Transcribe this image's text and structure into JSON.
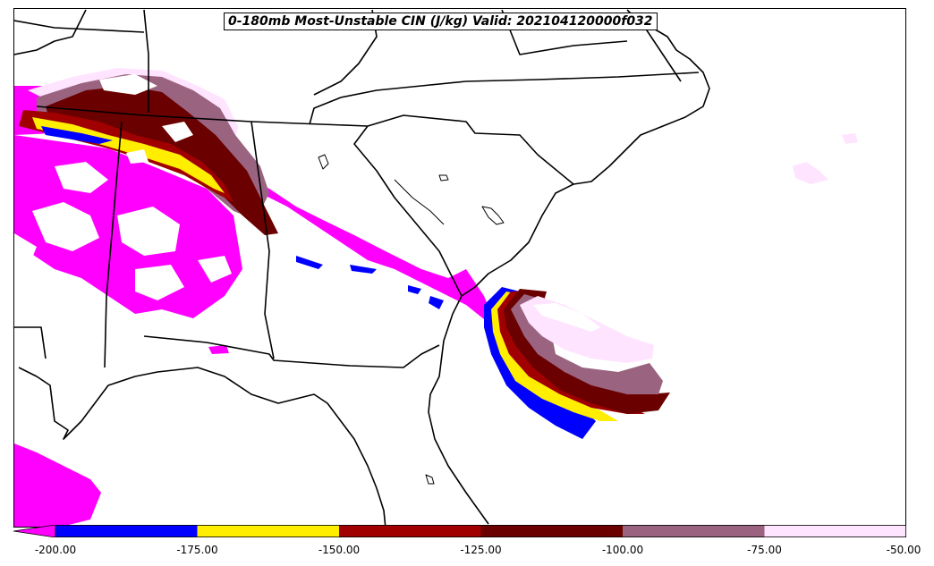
{
  "title": "0-180mb Most-Unstable CIN (J/kg) Valid: 202104120000f032",
  "colors": {
    "lt_-200": "#ff00ff",
    "-200_-175": "#0000ff",
    "-175_-150": "#ffee00",
    "-150_-125": "#a00000",
    "-125_-100": "#6a0000",
    "-100_-75": "#9a6480",
    "-75_-50": "#ffe4ff",
    "map_lines": "#000000",
    "background": "#ffffff"
  },
  "colorbar": {
    "ticks": [
      "-200.00",
      "-175.00",
      "-150.00",
      "-125.00",
      "-100.00",
      "-75.00",
      "-50.00"
    ]
  }
}
